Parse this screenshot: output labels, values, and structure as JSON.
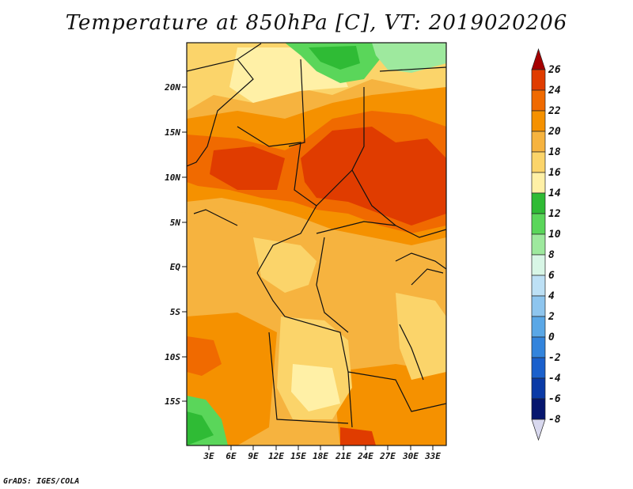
{
  "title": "Temperature at 850hPa [C], VT: 2019020206",
  "credit": "GrADS: IGES/COLA",
  "map": {
    "lat_labels": [
      "20N",
      "15N",
      "10N",
      "5N",
      "EQ",
      "5S",
      "10S",
      "15S"
    ],
    "lon_labels": [
      "3E",
      "6E",
      "9E",
      "12E",
      "15E",
      "18E",
      "21E",
      "24E",
      "27E",
      "30E",
      "33E"
    ]
  },
  "colorbar": {
    "labels": [
      "26",
      "24",
      "22",
      "20",
      "18",
      "16",
      "14",
      "12",
      "10",
      "8",
      "6",
      "4",
      "2",
      "0",
      "-2",
      "-4",
      "-6",
      "-8"
    ],
    "colors": [
      "#a50000",
      "#e03c00",
      "#f06a00",
      "#f59100",
      "#f6b33f",
      "#fbd46a",
      "#fff0a6",
      "#2fbb35",
      "#5ad65a",
      "#9ee99e",
      "#d8f6e6",
      "#bde0f5",
      "#8ec5ee",
      "#5aa7e6",
      "#3384dc",
      "#1a60cc",
      "#0a3aa6",
      "#06166e",
      "#d8d8ee"
    ]
  }
}
